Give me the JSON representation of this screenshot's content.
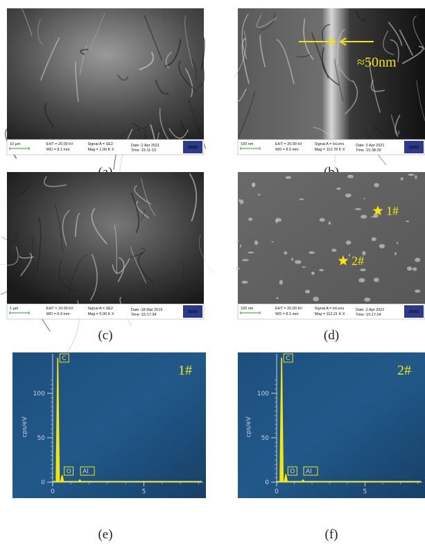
{
  "panels": [
    {
      "label": "(a)",
      "scale_bar": "10 µm",
      "eht": "EHT = 20.00 kV",
      "wd": "WD = 8.1 mm",
      "signal": "Signal A = SE2",
      "mag": "Mag =  1.00 K X",
      "date": "Date :2 Apr 2021",
      "time": "Time :15:11:19",
      "logo": "ZEISS"
    },
    {
      "label": "(b)",
      "scale_bar": "100 nm",
      "eht": "EHT = 20.00 kV",
      "wd": "WD = 8.0 mm",
      "signal": "Signal A = InLens",
      "mag": "Mag = 112.78 K X",
      "date": "Date :2 Apr 2021",
      "time": "Time :15:38:29",
      "logo": "ZEISS",
      "annotation": "≈50nm"
    },
    {
      "label": "(c)",
      "scale_bar": "1 µm",
      "eht": "EHT = 10.00 kV",
      "wd": "WD = 6.9 mm",
      "signal": "Signal A = SE2",
      "mag": "Mag =  5.00 K X",
      "date": "Date :18 Mar 2019",
      "time": "Time :15:17:34",
      "logo": "ZEISS"
    },
    {
      "label": "(d)",
      "scale_bar": "100 nm",
      "eht": "EHT = 20.00 kV",
      "wd": "WD = 8.1 mm",
      "signal": "Signal A = InLens",
      "mag": "Mag = 112.21 K X",
      "date": "Date :2 Apr 2021",
      "time": "Time :15:17:24",
      "logo": "ZEISS",
      "points": [
        "1#",
        "2#"
      ]
    }
  ],
  "spectra": [
    {
      "label": "(e)",
      "tag": "1#",
      "y_label": "cps/eV",
      "xlim": [
        -2.2,
        8.4
      ],
      "ylim": [
        -18,
        146
      ],
      "xticks": [
        0,
        5
      ],
      "yticks": [
        0,
        50,
        100
      ],
      "peaks": [
        {
          "name": "C",
          "x": 0.28,
          "y": 140
        },
        {
          "name": "O",
          "x": 0.52,
          "y": 8
        },
        {
          "name": "Al",
          "x": 1.49,
          "y": 3
        }
      ]
    },
    {
      "label": "(f)",
      "tag": "2#",
      "y_label": "cps/eV",
      "xlim": [
        -2.2,
        8.4
      ],
      "ylim": [
        -18,
        146
      ],
      "xticks": [
        0,
        5
      ],
      "yticks": [
        0,
        50,
        100
      ],
      "peaks": [
        {
          "name": "C",
          "x": 0.28,
          "y": 140
        },
        {
          "name": "O",
          "x": 0.52,
          "y": 9
        },
        {
          "name": "Al",
          "x": 1.49,
          "y": 3
        }
      ]
    }
  ]
}
